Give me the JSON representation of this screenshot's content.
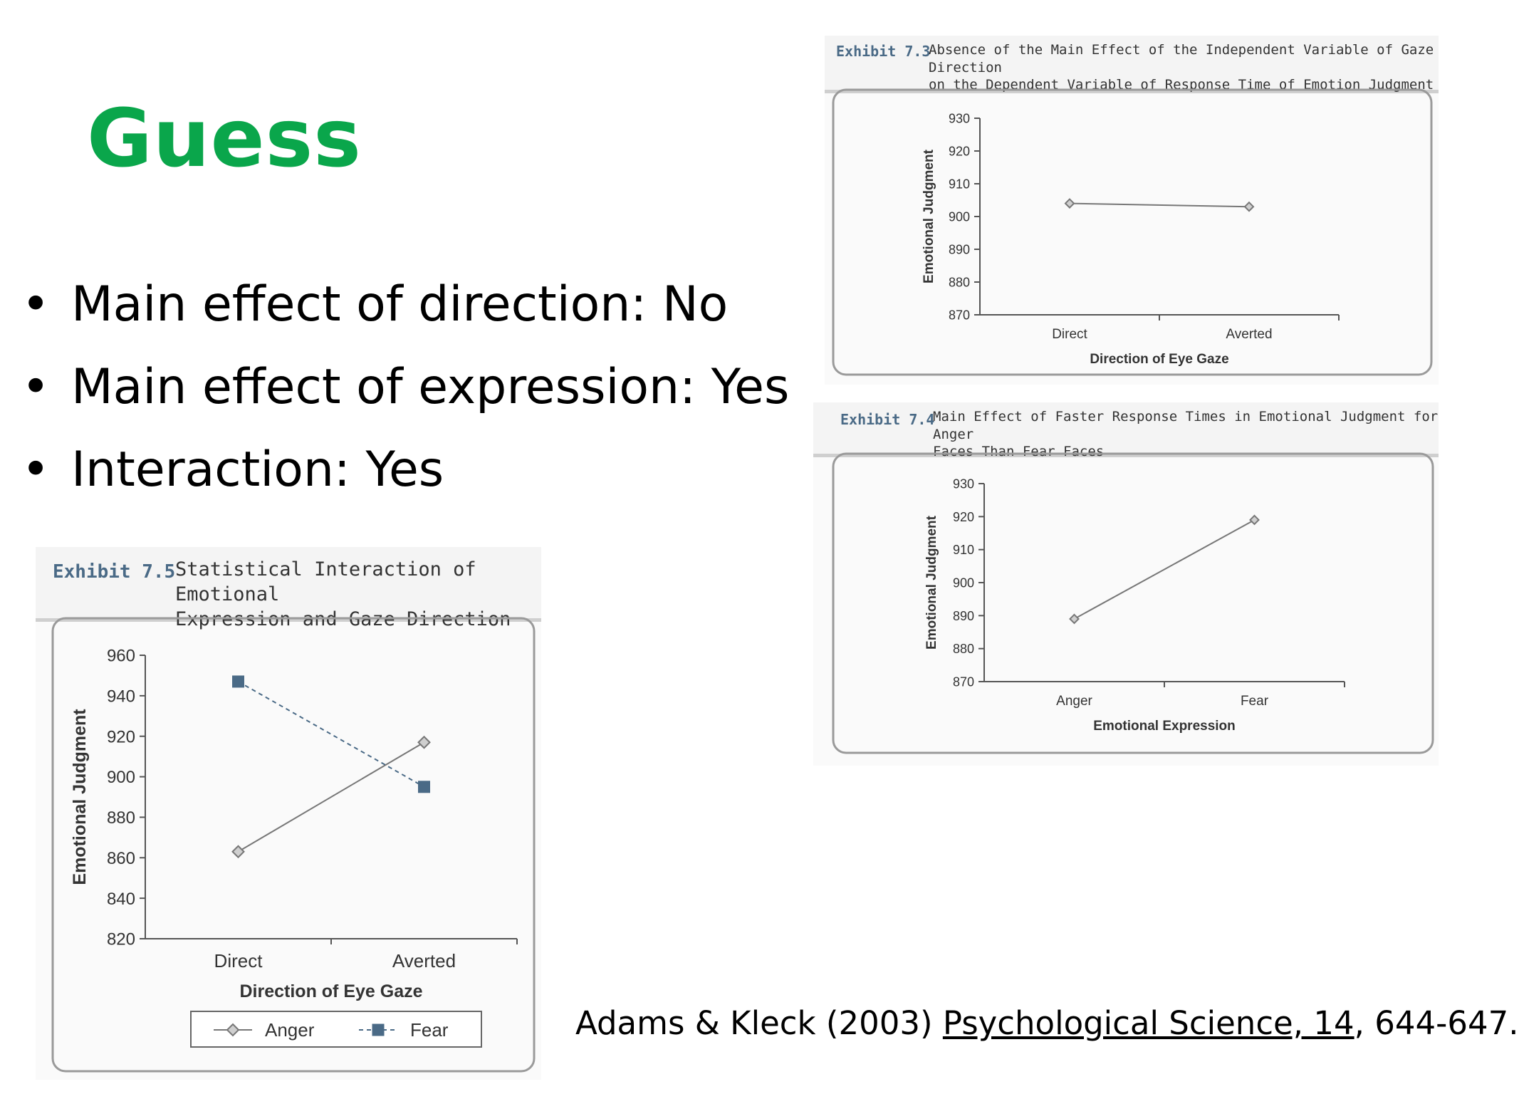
{
  "slide": {
    "title": "Guess",
    "bullets": [
      {
        "text": "Main effect of direction:  No"
      },
      {
        "text": "Main effect of expression:  Yes"
      },
      {
        "text": "Interaction: Yes"
      }
    ],
    "bullet_glyph": "•",
    "title_color": "#0aa64b",
    "citation": {
      "authors": "Adams & Kleck (2003) ",
      "journal": "Psychological Science, 14",
      "pages": ", 644-647."
    }
  },
  "chart_data": [
    {
      "id": "exhibit_7_3",
      "type": "line",
      "exhibit_label": "Exhibit 7.3",
      "title_lines": [
        "Absence of the Main Effect of the Independent Variable of Gaze Direction",
        "on the Dependent Variable of Response Time of Emotion Judgment"
      ],
      "categories": [
        "Direct",
        "Averted"
      ],
      "series": [
        {
          "values": [
            904,
            903
          ]
        }
      ],
      "xlabel": "Direction of Eye Gaze",
      "ylabel": "Emotional Judgment",
      "ylim": [
        870,
        930
      ],
      "yticks": [
        870,
        880,
        890,
        900,
        910,
        920,
        930
      ],
      "marker": "diamond",
      "grid": false
    },
    {
      "id": "exhibit_7_4",
      "type": "line",
      "exhibit_label": "Exhibit 7.4",
      "title_lines": [
        "Main Effect of Faster Response Times in Emotional Judgment for Anger",
        "Faces Than Fear Faces"
      ],
      "categories": [
        "Anger",
        "Fear"
      ],
      "series": [
        {
          "values": [
            889,
            919
          ]
        }
      ],
      "xlabel": "Emotional Expression",
      "ylabel": "Emotional Judgment",
      "ylim": [
        870,
        930
      ],
      "yticks": [
        870,
        880,
        890,
        900,
        910,
        920,
        930
      ],
      "marker": "diamond",
      "grid": false
    },
    {
      "id": "exhibit_7_5",
      "type": "line",
      "exhibit_label": "Exhibit 7.5",
      "title_lines": [
        "Statistical Interaction of Emotional",
        "Expression and Gaze Direction"
      ],
      "categories": [
        "Direct",
        "Averted"
      ],
      "series": [
        {
          "name": "Anger",
          "values": [
            863,
            917
          ],
          "marker": "diamond",
          "dash": false,
          "color": "#777777"
        },
        {
          "name": "Fear",
          "values": [
            947,
            895
          ],
          "marker": "square",
          "dash": true,
          "color": "#4a6a86"
        }
      ],
      "xlabel": "Direction of Eye Gaze",
      "ylabel": "Emotional Judgment",
      "ylim": [
        820,
        960
      ],
      "yticks": [
        820,
        840,
        860,
        880,
        900,
        920,
        940,
        960
      ],
      "legend_position": "bottom",
      "grid": false
    }
  ]
}
